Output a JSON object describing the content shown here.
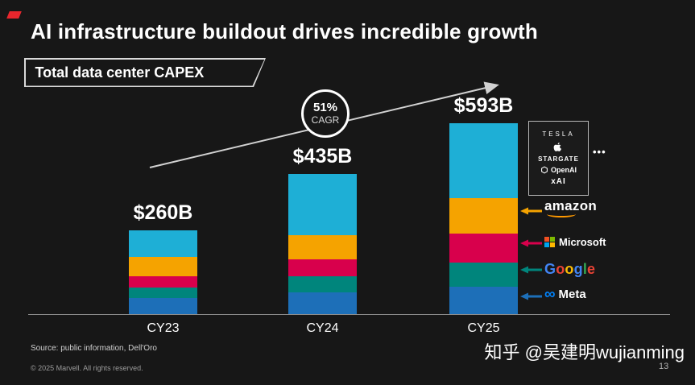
{
  "slide": {
    "title": "AI infrastructure buildout drives incredible growth",
    "subtitle_box": "Total data center CAPEX",
    "accent_red": "#E8262D",
    "source": "Source: public information, Dell'Oro",
    "copyright": "© 2025 Marvell. All rights reserved.",
    "page_number": "13",
    "watermark": "知乎 @吴建明wujianming"
  },
  "cagr_badge": {
    "value": "51%",
    "label": "CAGR"
  },
  "chart_data": {
    "type": "bar",
    "stacked": true,
    "title": "Total data center CAPEX",
    "xlabel": "",
    "ylabel": "",
    "categories": [
      "CY23",
      "CY24",
      "CY25"
    ],
    "totals": [
      260,
      435,
      593
    ],
    "totals_label": [
      "$260B",
      "$435B",
      "$593B"
    ],
    "unit": "$B",
    "annotation": "51% CAGR",
    "legend_position": "right",
    "grid": false,
    "series": [
      {
        "name": "Meta",
        "color": "#1D6FB8",
        "values": [
          49,
          68,
          85
        ]
      },
      {
        "name": "Google",
        "color": "#00857C",
        "values": [
          33,
          49,
          75
        ]
      },
      {
        "name": "Microsoft",
        "color": "#D8004C",
        "values": [
          36,
          54,
          90
        ]
      },
      {
        "name": "Amazon",
        "color": "#F5A300",
        "values": [
          60,
          73,
          110
        ]
      },
      {
        "name": "Others (Tesla, Apple, Stargate, OpenAI, xAI)",
        "color": "#1EAFD6",
        "values": [
          82,
          191,
          233
        ]
      }
    ]
  },
  "legend": {
    "others_box": {
      "tesla": "TESLA",
      "apple_icon": "apple-logo",
      "stargate": "STARGATE",
      "openai": "OpenAI",
      "xai": "xAI",
      "ellipsis": "•••"
    },
    "amazon": {
      "label": "amazon",
      "smile_color": "#FF9900"
    },
    "microsoft": {
      "label": "Microsoft",
      "squares": [
        "#F25022",
        "#7FBA00",
        "#00A4EF",
        "#FFB900"
      ]
    },
    "google": {
      "letters": [
        {
          "ch": "G",
          "color": "#4285F4"
        },
        {
          "ch": "o",
          "color": "#EA4335"
        },
        {
          "ch": "o",
          "color": "#FBBC05"
        },
        {
          "ch": "g",
          "color": "#4285F4"
        },
        {
          "ch": "l",
          "color": "#34A853"
        },
        {
          "ch": "e",
          "color": "#EA4335"
        }
      ]
    },
    "meta": {
      "label": "Meta",
      "infinity_color": "#0082FB"
    }
  }
}
